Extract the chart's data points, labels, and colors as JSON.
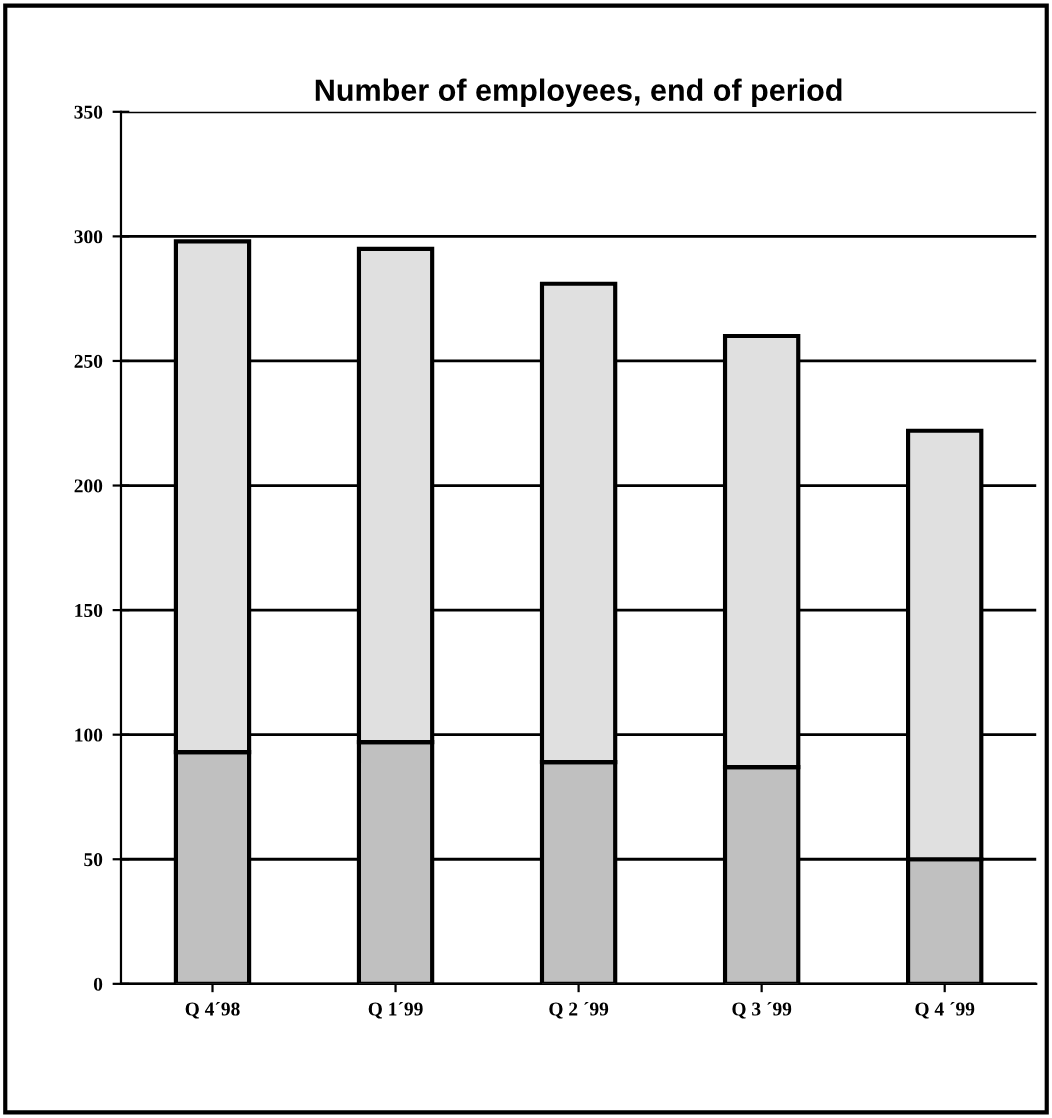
{
  "chart_data": {
    "type": "bar",
    "title": "Number of employees, end of period",
    "stacked": true,
    "categories": [
      "Q 4´98",
      "Q 1´99",
      "Q 2 ´99",
      "Q 3 ´99",
      "Q 4 ´99"
    ],
    "series": [
      {
        "color": "#c0c0c0",
        "values": [
          93,
          97,
          89,
          87,
          50
        ]
      },
      {
        "color": "#e0e0e0",
        "values": [
          205,
          198,
          192,
          173,
          172
        ]
      }
    ],
    "ylim": [
      0,
      350
    ],
    "yticks": [
      0,
      50,
      100,
      150,
      200,
      250,
      300,
      350
    ],
    "grid": "y"
  }
}
